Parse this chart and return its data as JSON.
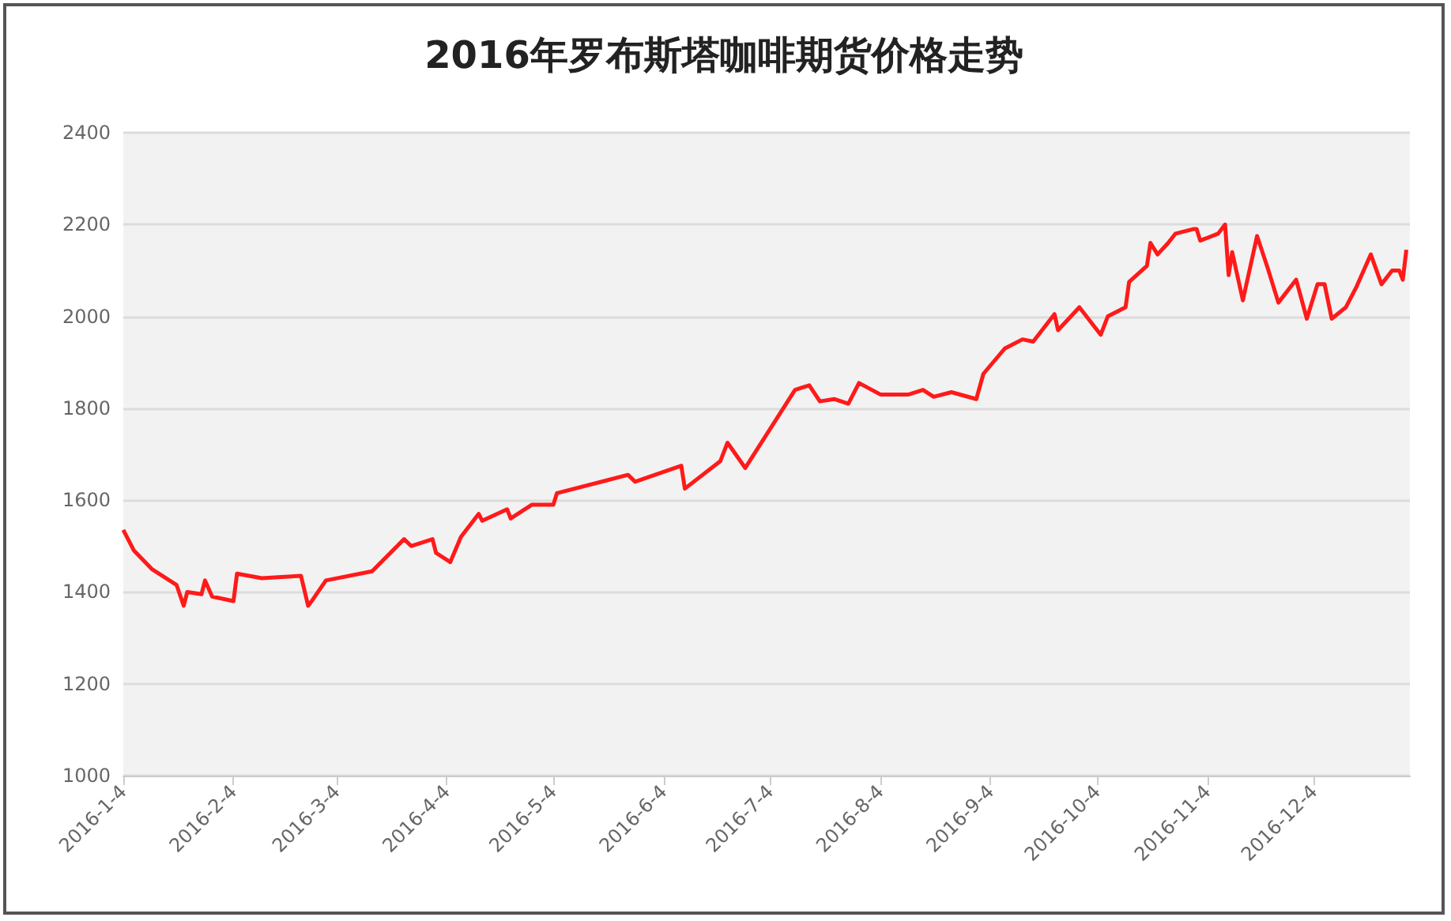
{
  "chart_data": {
    "type": "line",
    "title": "2016年罗布斯塔咖啡期货价格走势",
    "x": [
      "2016-01-04",
      "2016-01-07",
      "2016-01-12",
      "2016-01-19",
      "2016-01-21",
      "2016-01-22",
      "2016-01-26",
      "2016-01-27",
      "2016-01-29",
      "2016-02-04",
      "2016-02-05",
      "2016-02-12",
      "2016-02-23",
      "2016-02-25",
      "2016-02-26",
      "2016-03-01",
      "2016-03-14",
      "2016-03-23",
      "2016-03-25",
      "2016-03-31",
      "2016-04-01",
      "2016-04-05",
      "2016-04-08",
      "2016-04-13",
      "2016-04-14",
      "2016-04-21",
      "2016-04-22",
      "2016-04-28",
      "2016-05-04",
      "2016-05-05",
      "2016-05-25",
      "2016-05-27",
      "2016-06-09",
      "2016-06-10",
      "2016-06-20",
      "2016-06-22",
      "2016-06-27",
      "2016-07-11",
      "2016-07-15",
      "2016-07-18",
      "2016-07-22",
      "2016-07-26",
      "2016-07-29",
      "2016-08-04",
      "2016-08-12",
      "2016-08-16",
      "2016-08-19",
      "2016-08-24",
      "2016-08-31",
      "2016-09-02",
      "2016-09-08",
      "2016-09-13",
      "2016-09-16",
      "2016-09-22",
      "2016-09-23",
      "2016-09-29",
      "2016-10-05",
      "2016-10-07",
      "2016-10-12",
      "2016-10-13",
      "2016-10-18",
      "2016-10-19",
      "2016-10-21",
      "2016-10-24",
      "2016-10-26",
      "2016-10-31",
      "2016-11-01",
      "2016-11-02",
      "2016-11-07",
      "2016-11-09",
      "2016-11-10",
      "2016-11-11",
      "2016-11-14",
      "2016-11-18",
      "2016-11-21",
      "2016-11-24",
      "2016-11-29",
      "2016-12-02",
      "2016-12-05",
      "2016-12-07",
      "2016-12-09",
      "2016-12-13",
      "2016-12-16",
      "2016-12-20",
      "2016-12-23",
      "2016-12-26",
      "2016-12-28",
      "2016-12-29",
      "2016-12-30"
    ],
    "series": [
      {
        "color": "#ff1a1a",
        "values": [
          1535,
          1490,
          1450,
          1415,
          1370,
          1400,
          1395,
          1425,
          1390,
          1380,
          1440,
          1430,
          1435,
          1370,
          1380,
          1425,
          1445,
          1515,
          1500,
          1515,
          1485,
          1465,
          1520,
          1570,
          1555,
          1580,
          1560,
          1590,
          1590,
          1615,
          1655,
          1640,
          1675,
          1625,
          1685,
          1725,
          1670,
          1840,
          1850,
          1815,
          1820,
          1810,
          1855,
          1830,
          1830,
          1840,
          1825,
          1835,
          1820,
          1875,
          1930,
          1950,
          1945,
          2005,
          1970,
          2020,
          1960,
          2000,
          2020,
          2075,
          2110,
          2160,
          2135,
          2160,
          2180,
          2190,
          2190,
          2165,
          2180,
          2200,
          2090,
          2140,
          2035,
          2175,
          2105,
          2030,
          2080,
          1995,
          2070,
          2070,
          1995,
          2020,
          2065,
          2135,
          2070,
          2100,
          2100,
          2080,
          2145
        ]
      }
    ],
    "xlim": [
      "2016-01-04",
      "2016-12-31"
    ],
    "xticks": [
      {
        "value": "2016-01-04",
        "label": "2016-1-4"
      },
      {
        "value": "2016-02-04",
        "label": "2016-2-4"
      },
      {
        "value": "2016-03-04",
        "label": "2016-3-4"
      },
      {
        "value": "2016-04-04",
        "label": "2016-4-4"
      },
      {
        "value": "2016-05-04",
        "label": "2016-5-4"
      },
      {
        "value": "2016-06-04",
        "label": "2016-6-4"
      },
      {
        "value": "2016-07-04",
        "label": "2016-7-4"
      },
      {
        "value": "2016-08-04",
        "label": "2016-8-4"
      },
      {
        "value": "2016-09-04",
        "label": "2016-9-4"
      },
      {
        "value": "2016-10-04",
        "label": "2016-10-4"
      },
      {
        "value": "2016-11-04",
        "label": "2016-11-4"
      },
      {
        "value": "2016-12-04",
        "label": "2016-12-4"
      }
    ],
    "ylim": [
      1000,
      2400
    ],
    "yticks": [
      1000,
      1200,
      1400,
      1600,
      1800,
      2000,
      2200,
      2400
    ],
    "grid": "y",
    "marker": "none",
    "line_style": "solid"
  }
}
